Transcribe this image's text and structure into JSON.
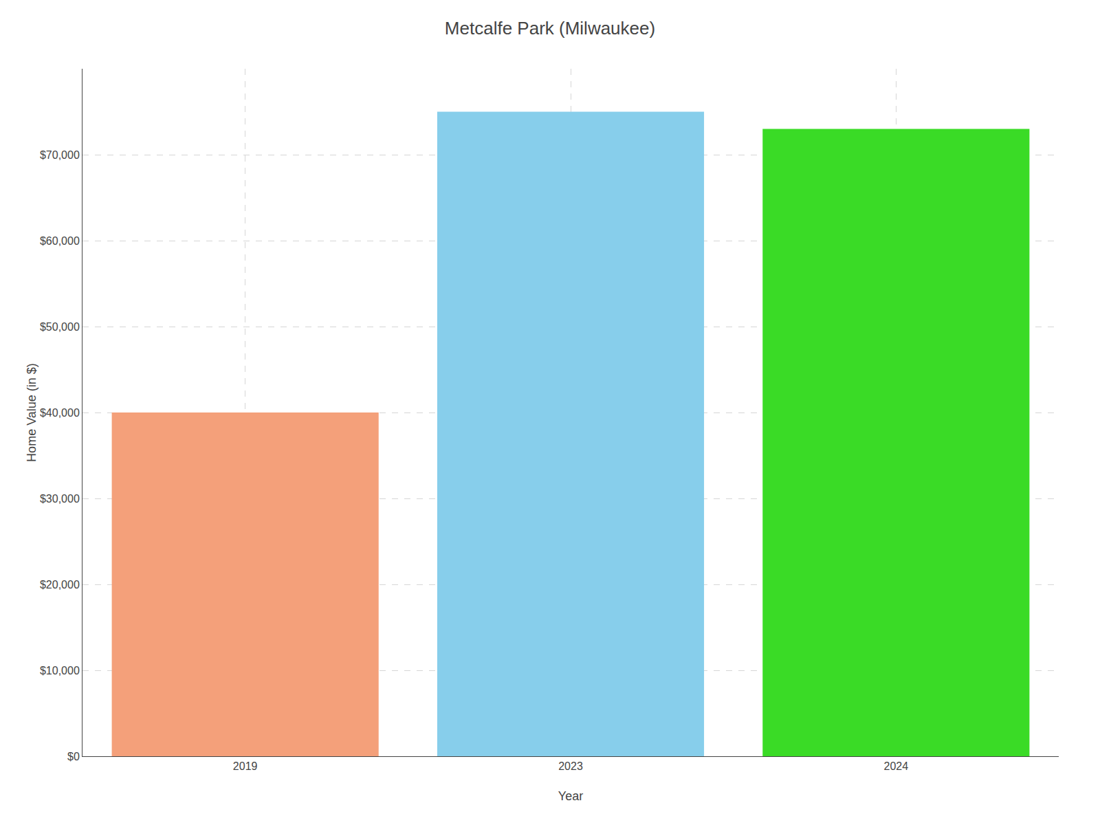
{
  "chart_data": {
    "type": "bar",
    "title": "Metcalfe Park (Milwaukee)",
    "xlabel": "Year",
    "ylabel": "Home Value (in $)",
    "categories": [
      "2019",
      "2023",
      "2024"
    ],
    "values": [
      40000,
      75000,
      73000
    ],
    "colors": [
      "#F4A07A",
      "#87CEEB",
      "#3ADB26"
    ],
    "ylim": [
      0,
      80000
    ],
    "yticks": [
      {
        "value": 0,
        "label": "$0"
      },
      {
        "value": 10000,
        "label": "$10,000"
      },
      {
        "value": 20000,
        "label": "$20,000"
      },
      {
        "value": 30000,
        "label": "$30,000"
      },
      {
        "value": 40000,
        "label": "$40,000"
      },
      {
        "value": 50000,
        "label": "$50,000"
      },
      {
        "value": 60000,
        "label": "$60,000"
      },
      {
        "value": 70000,
        "label": "$70,000"
      }
    ],
    "grid": true
  }
}
